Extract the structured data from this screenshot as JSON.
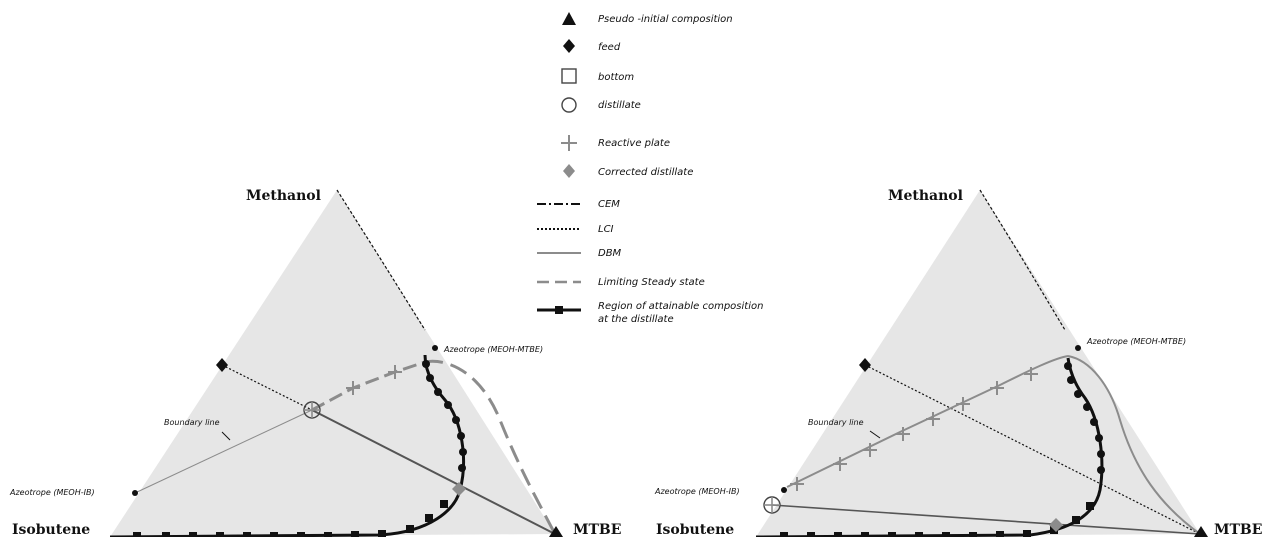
{
  "legend": {
    "items": [
      {
        "label": "Pseudo -initial composition",
        "symbol": "filled-triangle"
      },
      {
        "label": "feed",
        "symbol": "filled-diamond"
      },
      {
        "label": "bottom",
        "symbol": "open-square"
      },
      {
        "label": "distillate",
        "symbol": "open-circle"
      },
      {
        "label": "Reactive plate",
        "symbol": "plus"
      },
      {
        "label": "Corrected distillate",
        "symbol": "gray-diamond"
      },
      {
        "label": "CEM",
        "symbol": "dash-dot-line"
      },
      {
        "label": "LCI",
        "symbol": "dotted-line"
      },
      {
        "label": "DBM",
        "symbol": "solid-gray-line"
      },
      {
        "label": "Limiting Steady state",
        "symbol": "long-dash-line"
      },
      {
        "label": "Region of attainable composition",
        "label2": "at the distillate",
        "symbol": "line-with-squares"
      }
    ]
  },
  "diagrams": [
    {
      "vertex_top": "Methanol",
      "vertex_left": "Isobutene",
      "vertex_right": "MTBE",
      "azeotrope_top": "Azeotrope (MEOH-MTBE)",
      "azeotrope_left": "Azeotrope (MEOH-IB)",
      "boundary_label": "Boundary line"
    },
    {
      "vertex_top": "Methanol",
      "vertex_left": "Isobutene",
      "vertex_right": "MTBE",
      "azeotrope_top": "Azeotrope (MEOH-MTBE)",
      "azeotrope_left": "Azeotrope (MEOH-IB)",
      "boundary_label": "Boundary line"
    }
  ],
  "colors": {
    "region_fill": "#e6e6e6",
    "gray_line": "#8c8c8c",
    "corrected_distillate": "#8c8c8c",
    "black": "#111111"
  }
}
